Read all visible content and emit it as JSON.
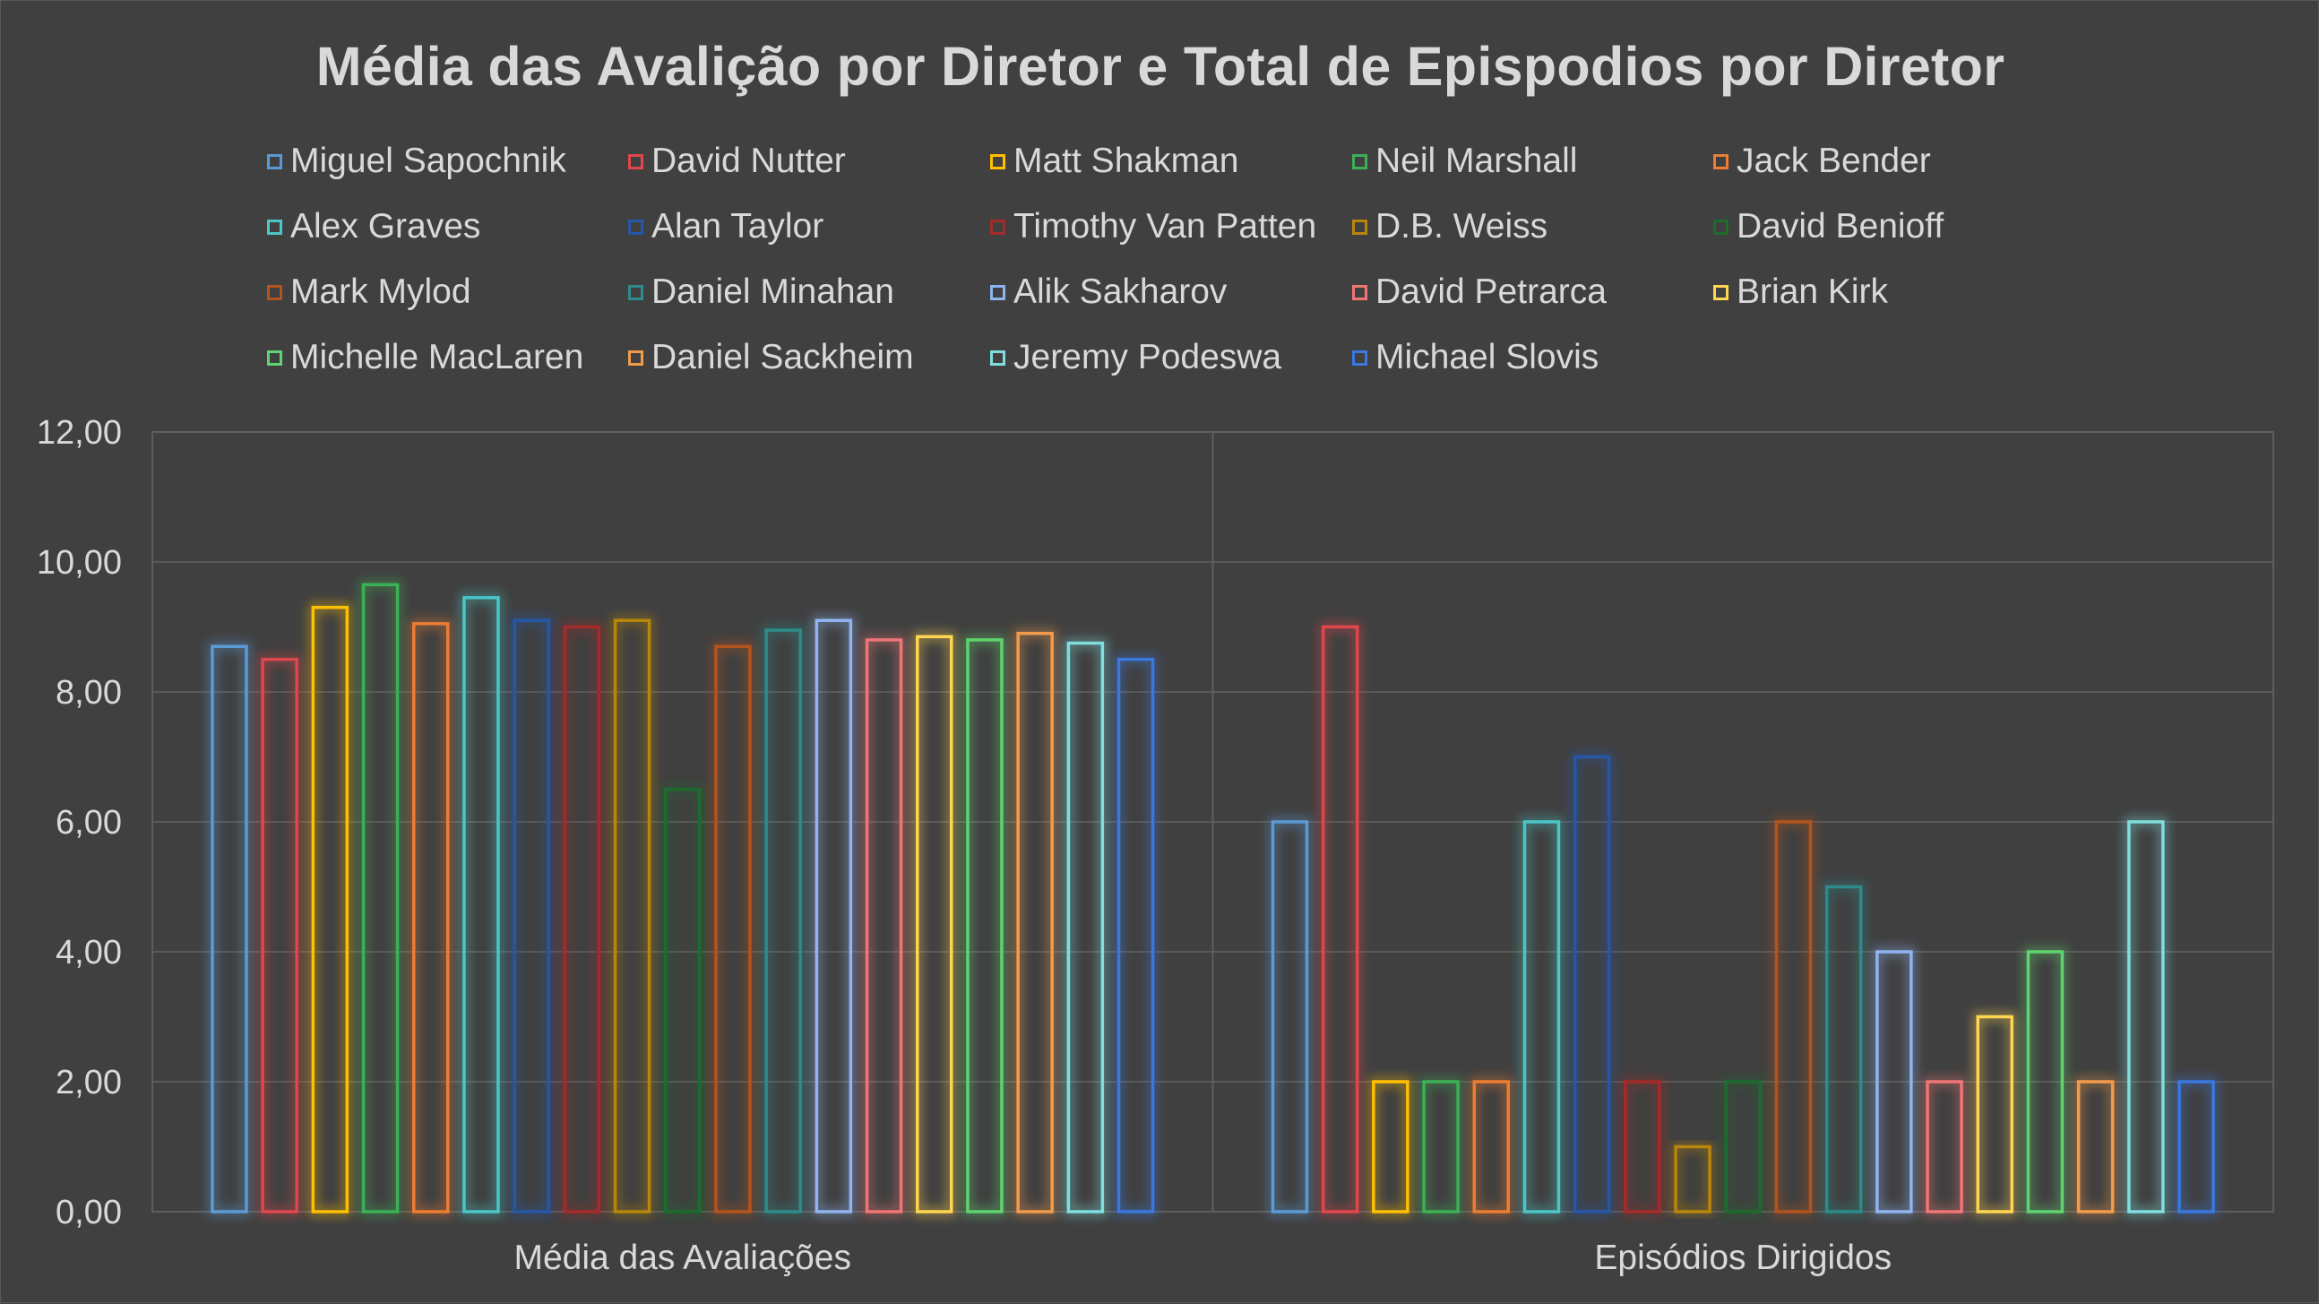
{
  "chart_data": {
    "type": "bar",
    "title": "Média das Avalição por Diretor e Total de Epispodios por Diretor",
    "xlabel": "",
    "ylabel": "",
    "ylim": [
      0,
      12
    ],
    "yticks": [
      0,
      2,
      4,
      6,
      8,
      10,
      12
    ],
    "ytick_labels": [
      "0,00",
      "2,00",
      "4,00",
      "6,00",
      "8,00",
      "10,00",
      "12,00"
    ],
    "grid": true,
    "legend_position": "top",
    "categories": [
      "Média das Avaliações",
      "Episódios Dirigidos"
    ],
    "series": [
      {
        "name": "Miguel Sapochnik",
        "color": "#5b9bd5",
        "values": [
          8.7,
          6
        ]
      },
      {
        "name": "David Nutter",
        "color": "#e0474c",
        "values": [
          8.5,
          9
        ]
      },
      {
        "name": "Matt Shakman",
        "color": "#ffc000",
        "values": [
          9.3,
          2
        ]
      },
      {
        "name": "Neil Marshall",
        "color": "#3cb054",
        "values": [
          9.65,
          2
        ]
      },
      {
        "name": "Jack Bender",
        "color": "#ed7d31",
        "values": [
          9.05,
          2
        ]
      },
      {
        "name": "Alex Graves",
        "color": "#4bc6c6",
        "values": [
          9.45,
          6
        ]
      },
      {
        "name": "Alan Taylor",
        "color": "#2557a8",
        "values": [
          9.1,
          7
        ]
      },
      {
        "name": "Timothy Van Patten",
        "color": "#a52a2a",
        "values": [
          9.0,
          2
        ]
      },
      {
        "name": "D.B. Weiss",
        "color": "#b8860b",
        "values": [
          9.1,
          1
        ]
      },
      {
        "name": "David Benioff",
        "color": "#1e6b2e",
        "values": [
          6.5,
          2
        ]
      },
      {
        "name": "Mark Mylod",
        "color": "#b3541e",
        "values": [
          8.7,
          6
        ]
      },
      {
        "name": "Daniel Minahan",
        "color": "#2e8b8b",
        "values": [
          8.95,
          5
        ]
      },
      {
        "name": "Alik Sakharov",
        "color": "#8fb4f0",
        "values": [
          9.1,
          4
        ]
      },
      {
        "name": "David Petrarca",
        "color": "#f07575",
        "values": [
          8.8,
          2
        ]
      },
      {
        "name": "Brian Kirk",
        "color": "#ffd54f",
        "values": [
          8.85,
          3
        ]
      },
      {
        "name": "Michelle MacLaren",
        "color": "#5fd36e",
        "values": [
          8.8,
          4
        ]
      },
      {
        "name": "Daniel Sackheim",
        "color": "#f29b4a",
        "values": [
          8.9,
          2
        ]
      },
      {
        "name": "Jeremy Podeswa",
        "color": "#7fdede",
        "values": [
          8.75,
          6
        ]
      },
      {
        "name": "Michael Slovis",
        "color": "#3a78e0",
        "values": [
          8.5,
          2
        ]
      }
    ]
  }
}
